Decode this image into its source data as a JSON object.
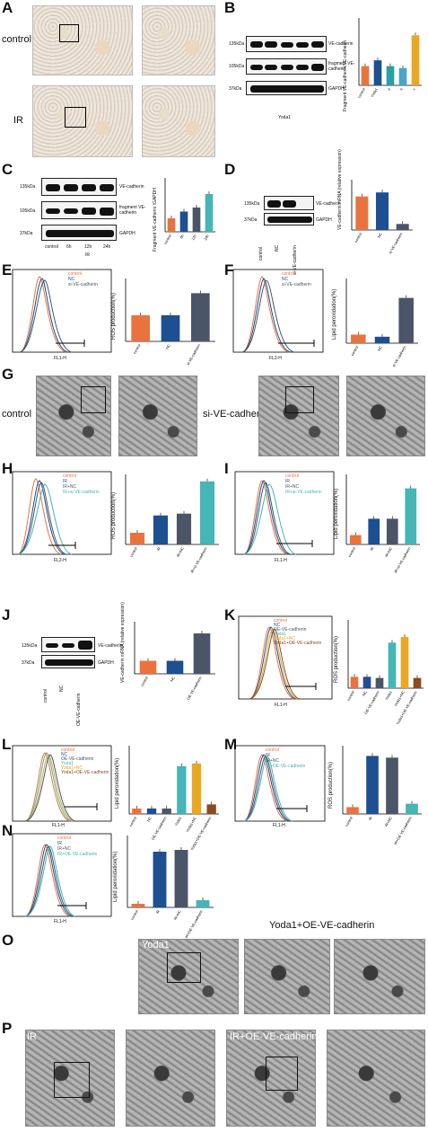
{
  "panels": {
    "A": {
      "label": "A",
      "row1": "control",
      "row2": "IR"
    },
    "B": {
      "label": "B",
      "mw": [
        "135kDa",
        "105kDa",
        "37kDa"
      ],
      "bands": [
        "VE-cadherin",
        "fragment VE-cadherin",
        "GAPDH"
      ],
      "group": "Yoda1",
      "ylabel": "Fragment VE-cadherin/VE-cadherin"
    },
    "C": {
      "label": "C",
      "mw": [
        "135kDa",
        "105kDa",
        "37kDa"
      ],
      "bands": [
        "VE-cadherin",
        "fragment VE-cadherin",
        "GAPDH"
      ],
      "lanes": [
        "control",
        "6h",
        "12h",
        "24h"
      ],
      "group": "IR",
      "ylabel": "Fragment VE-cadherin /GAPDH"
    },
    "D": {
      "label": "D",
      "mw": [
        "135kDa",
        "37kDa"
      ],
      "bands": [
        "VE-cadherin",
        "GAPDH"
      ],
      "lanes": [
        "control",
        "NC",
        "si-VE-cadherin"
      ],
      "ylabel": "VE-cadherin mRNA (relative expression)"
    },
    "E": {
      "label": "E",
      "legend": [
        "control",
        "NC",
        "si-VE-cadherin"
      ],
      "xaxis": "FL1-H",
      "yaxis": "Count",
      "ylabel": "ROS production(%)",
      "sig": "##"
    },
    "F": {
      "label": "F",
      "legend": [
        "control",
        "NC",
        "si-VE-cadherin"
      ],
      "xaxis": "FL2-H",
      "yaxis": "Count",
      "ylabel": "Lipid peroxidation(%)",
      "sig": "##"
    },
    "G": {
      "label": "G",
      "left": "control",
      "right": "si-VE-cadherin"
    },
    "H": {
      "label": "H",
      "legend": [
        "control",
        "IR",
        "IR+NC",
        "IR+si-VE-cadherin"
      ],
      "xaxis": "FL2-H",
      "yaxis": "Count",
      "ylabel": "ROS production(%)",
      "sig": "$$ ## **"
    },
    "I": {
      "label": "I",
      "legend": [
        "control",
        "IR",
        "IR+NC",
        "IR+si-VE-cadherin"
      ],
      "xaxis": "FL1-H",
      "yaxis": "Count",
      "ylabel": "Lipid peroxidation(%)",
      "sig": "$$ ## **"
    },
    "J": {
      "label": "J",
      "mw": [
        "135kDa",
        "37kDa"
      ],
      "bands": [
        "VE-cadherin",
        "GAPDH"
      ],
      "lanes": [
        "control",
        "NC",
        "OE-VE-cadherin"
      ],
      "ylabel": "VE-cadherin mRNA (relative expression)"
    },
    "K": {
      "label": "K",
      "legend": [
        "control",
        "NC",
        "OE-VE-cadherin",
        "Yoda1",
        "Yoda1+NC",
        "Yoda1+OE-VE-cadherin"
      ],
      "xaxis": "FL1-H",
      "ylabel": "ROS production(%)"
    },
    "L": {
      "label": "L",
      "legend": [
        "control",
        "NC",
        "OE-VE-cadherin",
        "Yoda1",
        "Yoda1+NC",
        "Yoda1+OE-VE-cadherin"
      ],
      "xaxis": "FL1-H",
      "ylabel": "Lipid peroxidation(%)"
    },
    "M": {
      "label": "M",
      "legend": [
        "control",
        "IR",
        "IR+NC",
        "IR+OE-VE-cadherin"
      ],
      "xaxis": "FL1-H",
      "ylabel": "ROS production(%)",
      "sig": "$$ %%"
    },
    "N": {
      "label": "N",
      "legend": [
        "control",
        "IR",
        "IR+NC",
        "IR+OE-VE-cadherin"
      ],
      "xaxis": "FL1-H",
      "ylabel": "Lipid peroxidation(%)",
      "sig": "$$ %%"
    },
    "O": {
      "label": "O",
      "left": "Yoda1",
      "right": "Yoda1+OE-VE-cadherin"
    },
    "P": {
      "label": "P",
      "left": "IR",
      "right": "IR+OE-VE-cadherin"
    }
  },
  "chart_data": [
    {
      "panel": "B",
      "type": "bar",
      "categories": [
        "control",
        "Yoda1",
        "a",
        "b",
        "c"
      ],
      "values": [
        1.0,
        1.3,
        1.0,
        0.9,
        2.6
      ],
      "ylim": [
        0,
        3.5
      ],
      "colors": [
        "#e9733f",
        "#1d4f91",
        "#2a9fa6",
        "#4aa3c9",
        "#e9a823"
      ]
    },
    {
      "panel": "C",
      "type": "bar",
      "categories": [
        "control",
        "6h",
        "12h",
        "24h"
      ],
      "values": [
        1.0,
        1.5,
        1.8,
        2.8
      ],
      "ylim": [
        0,
        4
      ],
      "colors": [
        "#e9733f",
        "#1d4f91",
        "#4a5568",
        "#45b5b5"
      ]
    },
    {
      "panel": "D",
      "type": "bar",
      "categories": [
        "control",
        "NC",
        "si-VE-cadherin"
      ],
      "values": [
        1.0,
        1.12,
        0.18
      ],
      "ylim": [
        0,
        1.5
      ],
      "colors": [
        "#e9733f",
        "#1d4f91",
        "#4a5568"
      ]
    },
    {
      "panel": "E",
      "type": "bar",
      "categories": [
        "control",
        "NC",
        "si-VE-cadherin"
      ],
      "values": [
        2.5,
        2.5,
        4.6
      ],
      "ylim": [
        0,
        6
      ],
      "colors": [
        "#e9733f",
        "#1d4f91",
        "#4a5568"
      ]
    },
    {
      "panel": "F",
      "type": "bar",
      "categories": [
        "control",
        "NC",
        "si-VE-cadherin"
      ],
      "values": [
        2.0,
        1.5,
        10.5
      ],
      "ylim": [
        0,
        15
      ],
      "colors": [
        "#e9733f",
        "#1d4f91",
        "#4a5568"
      ]
    },
    {
      "panel": "H",
      "type": "bar",
      "categories": [
        "control",
        "IR",
        "IR+NC",
        "IR+si-VE-cadherin"
      ],
      "values": [
        2.5,
        6.2,
        6.6,
        13.5
      ],
      "ylim": [
        0,
        15
      ],
      "colors": [
        "#e9733f",
        "#1d4f91",
        "#4a5568",
        "#45b5b5"
      ]
    },
    {
      "panel": "I",
      "type": "bar",
      "categories": [
        "control",
        "IR",
        "IR+NC",
        "IR+si-VE-cadherin"
      ],
      "values": [
        2.0,
        5.5,
        5.5,
        12.0
      ],
      "ylim": [
        0,
        15
      ],
      "colors": [
        "#e9733f",
        "#1d4f91",
        "#4a5568",
        "#45b5b5"
      ]
    },
    {
      "panel": "J",
      "type": "bar",
      "categories": [
        "control",
        "NC",
        "OE-VE-cadherin"
      ],
      "values": [
        1.0,
        1.0,
        3.1
      ],
      "ylim": [
        0,
        4
      ],
      "colors": [
        "#e9733f",
        "#1d4f91",
        "#4a5568"
      ]
    },
    {
      "panel": "K",
      "type": "bar",
      "categories": [
        "control",
        "NC",
        "OE-VE-cadherin",
        "Yoda1",
        "Yoda1+NC",
        "Yoda1+OE-VE-cadherin"
      ],
      "values": [
        2.0,
        2.0,
        1.8,
        8.0,
        9.0,
        1.8
      ],
      "ylim": [
        0,
        12
      ],
      "colors": [
        "#e9733f",
        "#1d4f91",
        "#4a5568",
        "#45b5b5",
        "#e9a823",
        "#8b4a1f"
      ]
    },
    {
      "panel": "L",
      "type": "bar",
      "categories": [
        "control",
        "NC",
        "OE-VE-cadherin",
        "Yoda1",
        "Yoda1+NC",
        "Yoda1+OE-VE-cadherin"
      ],
      "values": [
        2.0,
        2.0,
        2.0,
        17.5,
        18.5,
        3.5
      ],
      "ylim": [
        0,
        25
      ],
      "colors": [
        "#e9733f",
        "#1d4f91",
        "#4a5568",
        "#45b5b5",
        "#e9a823",
        "#8b4a1f"
      ]
    },
    {
      "panel": "M",
      "type": "bar",
      "categories": [
        "control",
        "IR",
        "IR+NC",
        "IR+OE-VE-cadherin"
      ],
      "values": [
        2.0,
        17.0,
        16.5,
        3.0
      ],
      "ylim": [
        0,
        20
      ],
      "colors": [
        "#e9733f",
        "#1d4f91",
        "#4a5568",
        "#45b5b5"
      ]
    },
    {
      "panel": "N",
      "type": "bar",
      "categories": [
        "control",
        "IR",
        "IR+NC",
        "IR+OE-VE-cadherin"
      ],
      "values": [
        2.0,
        31.0,
        32.0,
        4.0
      ],
      "ylim": [
        0,
        40
      ],
      "colors": [
        "#e9733f",
        "#1d4f91",
        "#4a5568",
        "#45b5b5"
      ]
    }
  ]
}
